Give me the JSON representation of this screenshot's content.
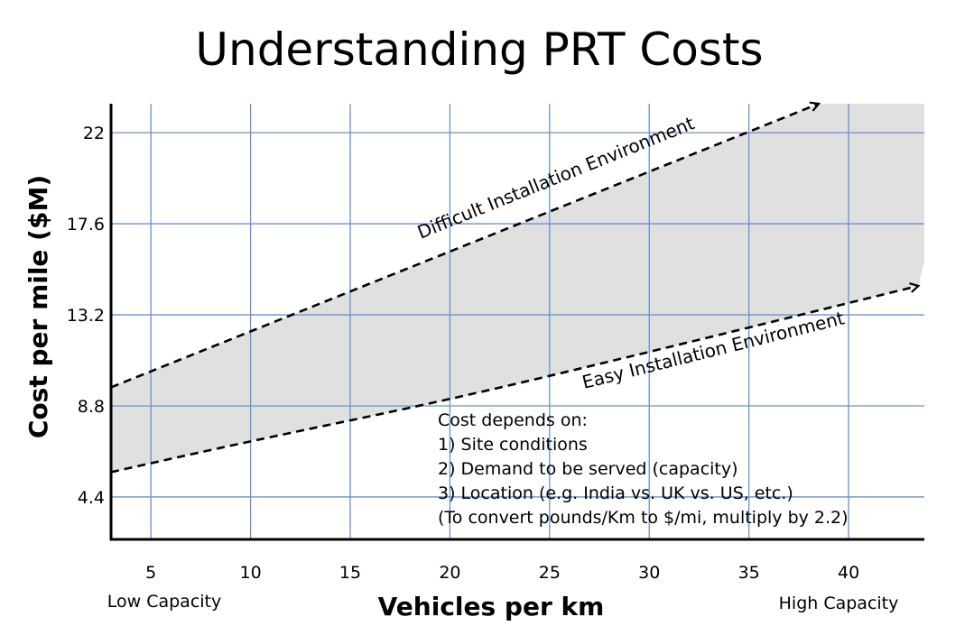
{
  "chart_data": {
    "type": "area",
    "title": "Understanding PRT Costs",
    "xlabel": "Vehicles per km",
    "ylabel": "Cost per mile ($M)",
    "x_ticks": [
      5,
      10,
      15,
      20,
      25,
      30,
      35,
      40
    ],
    "y_ticks": [
      4.4,
      8.8,
      13.2,
      17.6,
      22
    ],
    "xlim": [
      3,
      43.8
    ],
    "ylim": [
      2.35,
      23.4
    ],
    "x_end_labels": {
      "left": "Low Capacity",
      "right": "High Capacity"
    },
    "grid": true,
    "band_color": "#e0e0e0",
    "grid_color": "#6b8fcf",
    "series": [
      {
        "name": "Difficult Installation Environment",
        "style": "dashed-arrow",
        "x": [
          3,
          38.5
        ],
        "y": [
          9.7,
          23.4
        ]
      },
      {
        "name": "Easy Installation Environment",
        "style": "dashed-arrow",
        "x": [
          3,
          10,
          20,
          30,
          43.5
        ],
        "y": [
          5.6,
          7.1,
          9.1,
          11.4,
          14.6
        ]
      }
    ],
    "band_boundary": {
      "x": [
        3,
        38.5,
        43.8,
        43.8,
        43.5,
        30,
        20,
        10,
        3
      ],
      "y": [
        9.7,
        23.4,
        23.4,
        15.8,
        14.6,
        11.4,
        9.1,
        7.1,
        5.6
      ]
    },
    "annotation": {
      "heading": "Cost depends on:",
      "items": [
        "1) Site conditions",
        "2) Demand to be served (capacity)",
        "3) Location (e.g. India vs. UK vs. US, etc.)",
        "(To convert pounds/Km to $/mi, multiply by 2.2)"
      ]
    }
  }
}
